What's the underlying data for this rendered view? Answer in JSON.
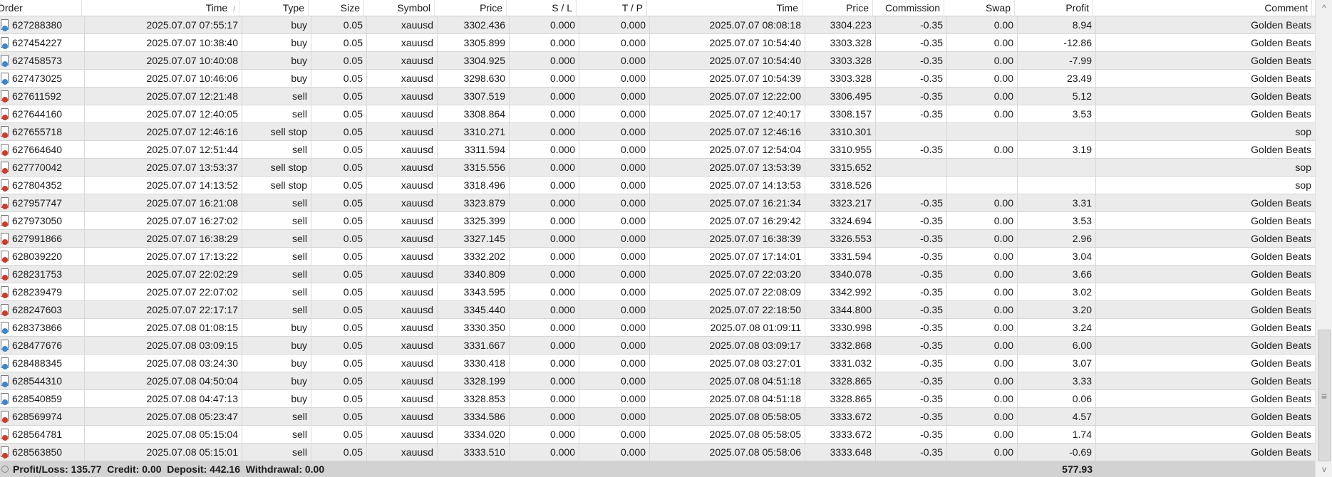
{
  "columns": [
    "Order",
    "Time",
    "Type",
    "Size",
    "Symbol",
    "Price",
    "S / L",
    "T / P",
    "Time",
    "Price",
    "Commission",
    "Swap",
    "Profit",
    "Comment"
  ],
  "sort_indicator": "/",
  "colors": {
    "buy_icon": "#3a86d0",
    "sell_icon": "#d03a2a",
    "row_alt": "#ebebeb",
    "footer_bg": "#d2d2d2"
  },
  "rows": [
    [
      "627288380",
      "2025.07.07 07:55:17",
      "buy",
      "0.05",
      "xauusd",
      "3302.436",
      "0.000",
      "0.000",
      "2025.07.07 08:08:18",
      "3304.223",
      "-0.35",
      "0.00",
      "8.94",
      "Golden Beats"
    ],
    [
      "627454227",
      "2025.07.07 10:38:40",
      "buy",
      "0.05",
      "xauusd",
      "3305.899",
      "0.000",
      "0.000",
      "2025.07.07 10:54:40",
      "3303.328",
      "-0.35",
      "0.00",
      "-12.86",
      "Golden Beats"
    ],
    [
      "627458573",
      "2025.07.07 10:40:08",
      "buy",
      "0.05",
      "xauusd",
      "3304.925",
      "0.000",
      "0.000",
      "2025.07.07 10:54:40",
      "3303.328",
      "-0.35",
      "0.00",
      "-7.99",
      "Golden Beats"
    ],
    [
      "627473025",
      "2025.07.07 10:46:06",
      "buy",
      "0.05",
      "xauusd",
      "3298.630",
      "0.000",
      "0.000",
      "2025.07.07 10:54:39",
      "3303.328",
      "-0.35",
      "0.00",
      "23.49",
      "Golden Beats"
    ],
    [
      "627611592",
      "2025.07.07 12:21:48",
      "sell",
      "0.05",
      "xauusd",
      "3307.519",
      "0.000",
      "0.000",
      "2025.07.07 12:22:00",
      "3306.495",
      "-0.35",
      "0.00",
      "5.12",
      "Golden Beats"
    ],
    [
      "627644160",
      "2025.07.07 12:40:05",
      "sell",
      "0.05",
      "xauusd",
      "3308.864",
      "0.000",
      "0.000",
      "2025.07.07 12:40:17",
      "3308.157",
      "-0.35",
      "0.00",
      "3.53",
      "Golden Beats"
    ],
    [
      "627655718",
      "2025.07.07 12:46:16",
      "sell stop",
      "0.05",
      "xauusd",
      "3310.271",
      "0.000",
      "0.000",
      "2025.07.07 12:46:16",
      "3310.301",
      "",
      "",
      "",
      "sop"
    ],
    [
      "627664640",
      "2025.07.07 12:51:44",
      "sell",
      "0.05",
      "xauusd",
      "3311.594",
      "0.000",
      "0.000",
      "2025.07.07 12:54:04",
      "3310.955",
      "-0.35",
      "0.00",
      "3.19",
      "Golden Beats"
    ],
    [
      "627770042",
      "2025.07.07 13:53:37",
      "sell stop",
      "0.05",
      "xauusd",
      "3315.556",
      "0.000",
      "0.000",
      "2025.07.07 13:53:39",
      "3315.652",
      "",
      "",
      "",
      "sop"
    ],
    [
      "627804352",
      "2025.07.07 14:13:52",
      "sell stop",
      "0.05",
      "xauusd",
      "3318.496",
      "0.000",
      "0.000",
      "2025.07.07 14:13:53",
      "3318.526",
      "",
      "",
      "",
      "sop"
    ],
    [
      "627957747",
      "2025.07.07 16:21:08",
      "sell",
      "0.05",
      "xauusd",
      "3323.879",
      "0.000",
      "0.000",
      "2025.07.07 16:21:34",
      "3323.217",
      "-0.35",
      "0.00",
      "3.31",
      "Golden Beats"
    ],
    [
      "627973050",
      "2025.07.07 16:27:02",
      "sell",
      "0.05",
      "xauusd",
      "3325.399",
      "0.000",
      "0.000",
      "2025.07.07 16:29:42",
      "3324.694",
      "-0.35",
      "0.00",
      "3.53",
      "Golden Beats"
    ],
    [
      "627991866",
      "2025.07.07 16:38:29",
      "sell",
      "0.05",
      "xauusd",
      "3327.145",
      "0.000",
      "0.000",
      "2025.07.07 16:38:39",
      "3326.553",
      "-0.35",
      "0.00",
      "2.96",
      "Golden Beats"
    ],
    [
      "628039220",
      "2025.07.07 17:13:22",
      "sell",
      "0.05",
      "xauusd",
      "3332.202",
      "0.000",
      "0.000",
      "2025.07.07 17:14:01",
      "3331.594",
      "-0.35",
      "0.00",
      "3.04",
      "Golden Beats"
    ],
    [
      "628231753",
      "2025.07.07 22:02:29",
      "sell",
      "0.05",
      "xauusd",
      "3340.809",
      "0.000",
      "0.000",
      "2025.07.07 22:03:20",
      "3340.078",
      "-0.35",
      "0.00",
      "3.66",
      "Golden Beats"
    ],
    [
      "628239479",
      "2025.07.07 22:07:02",
      "sell",
      "0.05",
      "xauusd",
      "3343.595",
      "0.000",
      "0.000",
      "2025.07.07 22:08:09",
      "3342.992",
      "-0.35",
      "0.00",
      "3.02",
      "Golden Beats"
    ],
    [
      "628247603",
      "2025.07.07 22:17:17",
      "sell",
      "0.05",
      "xauusd",
      "3345.440",
      "0.000",
      "0.000",
      "2025.07.07 22:18:50",
      "3344.800",
      "-0.35",
      "0.00",
      "3.20",
      "Golden Beats"
    ],
    [
      "628373866",
      "2025.07.08 01:08:15",
      "buy",
      "0.05",
      "xauusd",
      "3330.350",
      "0.000",
      "0.000",
      "2025.07.08 01:09:11",
      "3330.998",
      "-0.35",
      "0.00",
      "3.24",
      "Golden Beats"
    ],
    [
      "628477676",
      "2025.07.08 03:09:15",
      "buy",
      "0.05",
      "xauusd",
      "3331.667",
      "0.000",
      "0.000",
      "2025.07.08 03:09:17",
      "3332.868",
      "-0.35",
      "0.00",
      "6.00",
      "Golden Beats"
    ],
    [
      "628488345",
      "2025.07.08 03:24:30",
      "buy",
      "0.05",
      "xauusd",
      "3330.418",
      "0.000",
      "0.000",
      "2025.07.08 03:27:01",
      "3331.032",
      "-0.35",
      "0.00",
      "3.07",
      "Golden Beats"
    ],
    [
      "628544310",
      "2025.07.08 04:50:04",
      "buy",
      "0.05",
      "xauusd",
      "3328.199",
      "0.000",
      "0.000",
      "2025.07.08 04:51:18",
      "3328.865",
      "-0.35",
      "0.00",
      "3.33",
      "Golden Beats"
    ],
    [
      "628540859",
      "2025.07.08 04:47:13",
      "buy",
      "0.05",
      "xauusd",
      "3328.853",
      "0.000",
      "0.000",
      "2025.07.08 04:51:18",
      "3328.865",
      "-0.35",
      "0.00",
      "0.06",
      "Golden Beats"
    ],
    [
      "628569974",
      "2025.07.08 05:23:47",
      "sell",
      "0.05",
      "xauusd",
      "3334.586",
      "0.000",
      "0.000",
      "2025.07.08 05:58:05",
      "3333.672",
      "-0.35",
      "0.00",
      "4.57",
      "Golden Beats"
    ],
    [
      "628564781",
      "2025.07.08 05:15:04",
      "sell",
      "0.05",
      "xauusd",
      "3334.020",
      "0.000",
      "0.000",
      "2025.07.08 05:58:05",
      "3333.672",
      "-0.35",
      "0.00",
      "1.74",
      "Golden Beats"
    ],
    [
      "628563850",
      "2025.07.08 05:15:01",
      "sell",
      "0.05",
      "xauusd",
      "3333.510",
      "0.000",
      "0.000",
      "2025.07.08 05:58:06",
      "3333.648",
      "-0.35",
      "0.00",
      "-0.69",
      "Golden Beats"
    ]
  ],
  "footer": {
    "summary": "Profit/Loss: 135.77  Credit: 0.00  Deposit: 442.16  Withdrawal: 0.00",
    "total_profit": "577.93"
  },
  "scrollbar": {
    "up_arrow": "^",
    "down_arrow": "v",
    "grip": "≡",
    "position_fraction": 0.72
  }
}
